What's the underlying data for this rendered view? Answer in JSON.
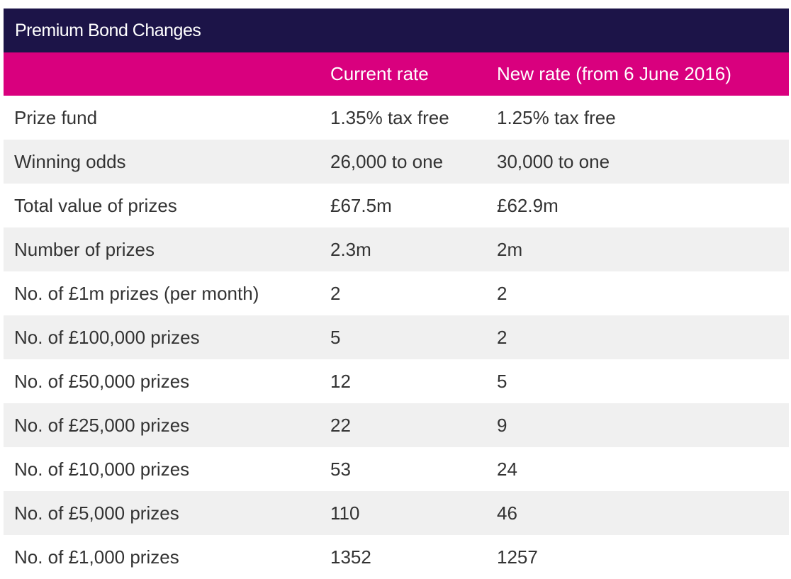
{
  "title": "Premium Bond Changes",
  "colors": {
    "title_bg": "#1c1448",
    "header_bg": "#d9007e",
    "alt_row_bg": "#f0f0f0",
    "text": "#333333"
  },
  "columns": {
    "label": "",
    "current": "Current rate",
    "new": "New rate (from 6 June 2016)"
  },
  "rows": [
    {
      "label": "Prize fund",
      "current": "1.35% tax free",
      "new": "1.25% tax free"
    },
    {
      "label": "Winning odds",
      "current": "26,000 to one",
      "new": "30,000 to one"
    },
    {
      "label": "Total value of prizes",
      "current": "£67.5m",
      "new": "£62.9m"
    },
    {
      "label": "Number of prizes",
      "current": "2.3m",
      "new": "2m"
    },
    {
      "label": "No. of £1m prizes (per month)",
      "current": "2",
      "new": "2"
    },
    {
      "label": "No. of £100,000 prizes",
      "current": "5",
      "new": "2"
    },
    {
      "label": "No. of £50,000 prizes",
      "current": "12",
      "new": "5"
    },
    {
      "label": "No. of £25,000 prizes",
      "current": "22",
      "new": "9"
    },
    {
      "label": "No. of £10,000 prizes",
      "current": "53",
      "new": "24"
    },
    {
      "label": "No. of £5,000 prizes",
      "current": "110",
      "new": "46"
    },
    {
      "label": "No. of £1,000 prizes",
      "current": "1352",
      "new": "1257"
    }
  ]
}
